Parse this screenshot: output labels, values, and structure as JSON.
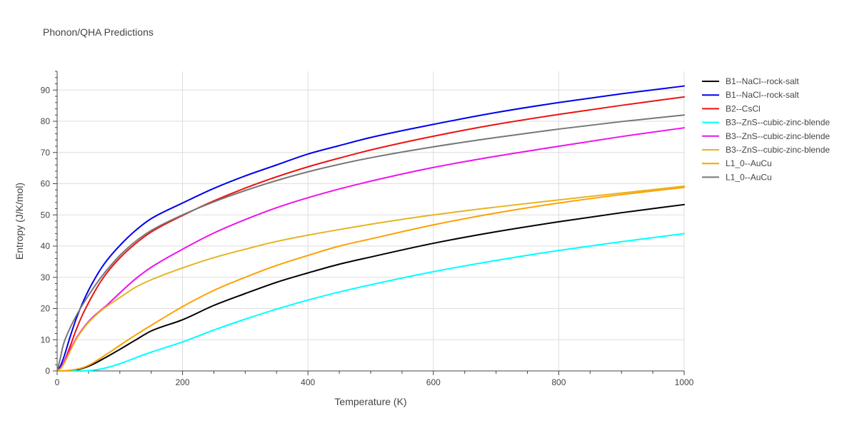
{
  "chart_data": {
    "type": "line",
    "title": "Phonon/QHA Predictions",
    "xlabel": "Temperature (K)",
    "ylabel": "Entropy (J/K/mol)",
    "xlim": [
      0,
      1000
    ],
    "ylim": [
      0,
      96
    ],
    "xticks": [
      0,
      200,
      400,
      600,
      800,
      1000
    ],
    "yticks": [
      0,
      10,
      20,
      30,
      40,
      50,
      60,
      70,
      80,
      90
    ],
    "grid": true,
    "legend_position": "top-right, outside plot",
    "series": [
      {
        "name": "B1--NaCl--rock-salt",
        "color": "#000000",
        "x": [
          0,
          10,
          20,
          30,
          40,
          50,
          60,
          70,
          80,
          100,
          125,
          150,
          200,
          250,
          300,
          350,
          400,
          450,
          500,
          600,
          700,
          800,
          900,
          1000
        ],
        "y": [
          0,
          0,
          0.1,
          0.3,
          0.8,
          1.5,
          2.4,
          3.5,
          4.6,
          6.9,
          9.9,
          12.8,
          16.4,
          21.0,
          24.8,
          28.4,
          31.4,
          34.2,
          36.5,
          40.9,
          44.6,
          47.8,
          50.7,
          53.3
        ]
      },
      {
        "name": "B1--NaCl--rock-salt",
        "color": "#0000ee",
        "x": [
          0,
          5,
          10,
          20,
          30,
          40,
          50,
          60,
          70,
          80,
          100,
          125,
          150,
          200,
          250,
          300,
          350,
          400,
          450,
          500,
          600,
          700,
          800,
          900,
          1000
        ],
        "y": [
          0,
          1.5,
          4,
          10.5,
          16.5,
          21.5,
          25.8,
          29.5,
          32.8,
          35.6,
          40.2,
          45.0,
          48.8,
          53.8,
          58.5,
          62.5,
          66.0,
          69.5,
          72.2,
          74.8,
          79.0,
          82.8,
          86.0,
          88.8,
          91.3
        ]
      },
      {
        "name": "B2--CsCl",
        "color": "#ee1111",
        "x": [
          0,
          5,
          10,
          20,
          30,
          40,
          50,
          60,
          70,
          80,
          100,
          125,
          150,
          200,
          250,
          300,
          350,
          400,
          450,
          500,
          600,
          700,
          800,
          900,
          1000
        ],
        "y": [
          0,
          0.8,
          2.5,
          7.5,
          13,
          17.8,
          21.8,
          25.5,
          28.8,
          31.6,
          36.2,
          40.8,
          44.5,
          49.8,
          54.5,
          58.6,
          62.2,
          65.4,
          68.2,
          70.8,
          75.2,
          79.0,
          82.2,
          85.1,
          87.8
        ]
      },
      {
        "name": "B3--ZnS--cubic-zinc-blende",
        "color": "#00ffff",
        "x": [
          0,
          20,
          40,
          60,
          80,
          100,
          125,
          150,
          200,
          250,
          300,
          350,
          400,
          450,
          500,
          600,
          700,
          800,
          900,
          1000
        ],
        "y": [
          0,
          0,
          0,
          0.3,
          1.1,
          2.3,
          4.2,
          6.0,
          9.3,
          13.1,
          16.6,
          19.8,
          22.7,
          25.3,
          27.6,
          31.8,
          35.4,
          38.6,
          41.4,
          44.0
        ]
      },
      {
        "name": "B3--ZnS--cubic-zinc-blende",
        "color": "#ee11ee",
        "x": [
          0,
          5,
          10,
          20,
          30,
          40,
          50,
          60,
          70,
          80,
          100,
          125,
          150,
          200,
          250,
          300,
          350,
          400,
          450,
          500,
          600,
          700,
          800,
          900,
          1000
        ],
        "y": [
          0,
          0.8,
          2.5,
          6.5,
          10.3,
          13.3,
          15.8,
          17.8,
          19.5,
          21.2,
          25.0,
          29.5,
          33.2,
          39.0,
          44.2,
          48.5,
          52.3,
          55.5,
          58.3,
          60.8,
          65.2,
          68.8,
          72.0,
          75.1,
          77.9
        ]
      },
      {
        "name": "B3--ZnS--cubic-zinc-blende",
        "color": "#e6b422",
        "x": [
          0,
          5,
          10,
          20,
          30,
          40,
          50,
          60,
          70,
          80,
          100,
          125,
          150,
          200,
          250,
          300,
          350,
          400,
          450,
          500,
          600,
          700,
          800,
          900,
          1000
        ],
        "y": [
          0,
          0.6,
          2.0,
          6.0,
          10.0,
          13.0,
          15.5,
          17.5,
          19.3,
          20.8,
          23.5,
          26.8,
          29.2,
          33.0,
          36.3,
          39.0,
          41.5,
          43.5,
          45.3,
          47.0,
          50.0,
          52.5,
          54.8,
          57.0,
          59.2
        ]
      },
      {
        "name": "L1_0--AuCu",
        "color": "#ffa000",
        "x": [
          0,
          10,
          20,
          30,
          40,
          50,
          60,
          70,
          80,
          100,
          125,
          150,
          200,
          250,
          300,
          350,
          400,
          450,
          500,
          600,
          700,
          800,
          900,
          1000
        ],
        "y": [
          0,
          0,
          0.2,
          0.5,
          1.0,
          1.8,
          2.9,
          4.2,
          5.5,
          8.2,
          11.5,
          14.6,
          20.6,
          25.8,
          30.0,
          33.8,
          37.0,
          40.0,
          42.3,
          46.8,
          50.6,
          53.8,
          56.5,
          58.8
        ]
      },
      {
        "name": "L1_0--AuCu",
        "color": "#777777",
        "x": [
          0,
          5,
          10,
          20,
          30,
          40,
          50,
          60,
          70,
          80,
          100,
          125,
          150,
          200,
          250,
          300,
          350,
          400,
          450,
          500,
          600,
          700,
          800,
          900,
          1000
        ],
        "y": [
          0,
          4,
          8.5,
          13.5,
          17.5,
          21.0,
          24.2,
          27.2,
          30.0,
          32.5,
          37.0,
          41.5,
          45.0,
          50.0,
          54.2,
          57.8,
          61.0,
          63.8,
          66.2,
          68.3,
          71.8,
          74.8,
          77.5,
          79.9,
          82.0
        ]
      }
    ]
  }
}
